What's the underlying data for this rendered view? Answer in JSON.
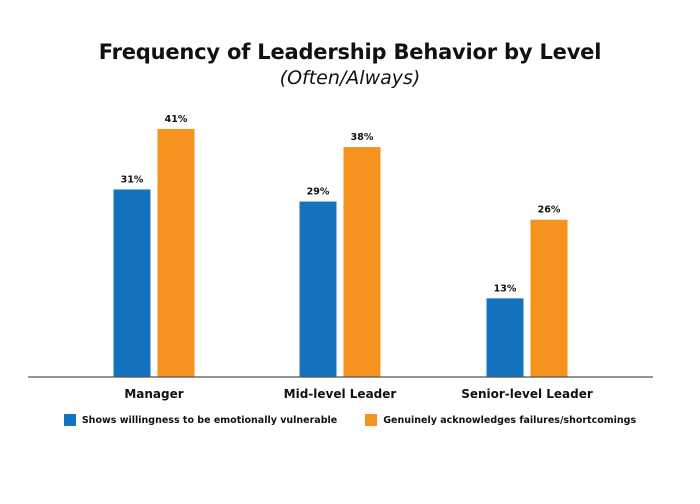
{
  "colors": {
    "series_1": "#1473be",
    "series_2": "#f6921e",
    "axis": "#555555",
    "text": "#111111"
  },
  "chart_data": {
    "type": "bar",
    "title": "Frequency of Leadership Behavior by Level",
    "subtitle": "(Often/Always)",
    "categories": [
      "Manager",
      "Mid-level Leader",
      "Senior-level Leader"
    ],
    "series": [
      {
        "name": "Shows willingness to be emotionally vulnerable",
        "values": [
          31,
          29,
          13
        ],
        "labels": [
          "31%",
          "29%",
          "13%"
        ]
      },
      {
        "name": "Genuinely acknowledges failures/shortcomings",
        "values": [
          41,
          38,
          26
        ],
        "labels": [
          "41%",
          "38%",
          "26%"
        ]
      }
    ],
    "xlabel": "",
    "ylabel": "",
    "ylim": [
      0,
      41
    ],
    "grid": false,
    "legend_position": "bottom"
  }
}
